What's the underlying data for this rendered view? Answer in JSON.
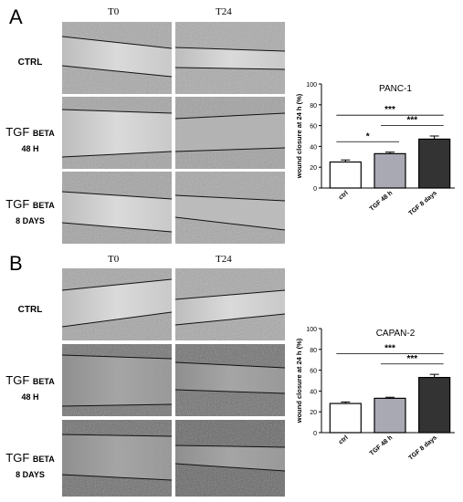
{
  "panels": [
    {
      "letter": "A",
      "col_headers": [
        "T0",
        "T24"
      ],
      "rows": [
        {
          "line1": "CTRL",
          "line2a": "",
          "line2b": ""
        },
        {
          "line1a": "TGF ",
          "line1b": "BETA",
          "line2": "48 H"
        },
        {
          "line1a": "TGF ",
          "line1b": "BETA",
          "line2": "8 DAYS"
        }
      ]
    },
    {
      "letter": "B",
      "col_headers": [
        "T0",
        "T24"
      ],
      "rows": [
        {
          "line1": "CTRL"
        },
        {
          "line1a": "TGF ",
          "line1b": "BETA",
          "line2": "48 H"
        },
        {
          "line1a": "TGF ",
          "line1b": "BETA",
          "line2": "8 DAYS"
        }
      ]
    }
  ],
  "chart_data": [
    {
      "type": "bar",
      "title": "PANC-1",
      "ylabel": "wound closure at 24 h (%)",
      "ylim": [
        0,
        100
      ],
      "yticks": [
        0,
        20,
        40,
        60,
        80,
        100
      ],
      "categories": [
        "ctrl",
        "TGF 48 h",
        "TGF 8 days"
      ],
      "values": [
        25,
        33,
        47
      ],
      "errors": [
        2,
        1.5,
        3
      ],
      "colors": [
        "#ffffff",
        "#a9a9b4",
        "#333333"
      ],
      "significance": [
        {
          "from": 0,
          "to": 1,
          "label": "*"
        },
        {
          "from": 1,
          "to": 2,
          "label": "***"
        },
        {
          "from": 0,
          "to": 2,
          "label": "***"
        }
      ]
    },
    {
      "type": "bar",
      "title": "CAPAN-2",
      "ylabel": "wound closure at 24 h (%)",
      "ylim": [
        0,
        100
      ],
      "yticks": [
        0,
        20,
        40,
        60,
        80,
        100
      ],
      "categories": [
        "ctrl",
        "TGF 48 h",
        "TGF 8 days"
      ],
      "values": [
        28,
        33,
        53
      ],
      "errors": [
        1.5,
        1,
        3
      ],
      "colors": [
        "#ffffff",
        "#a9a9b4",
        "#333333"
      ],
      "significance": [
        {
          "from": 1,
          "to": 2,
          "label": "***"
        },
        {
          "from": 0,
          "to": 2,
          "label": "***"
        }
      ]
    }
  ]
}
